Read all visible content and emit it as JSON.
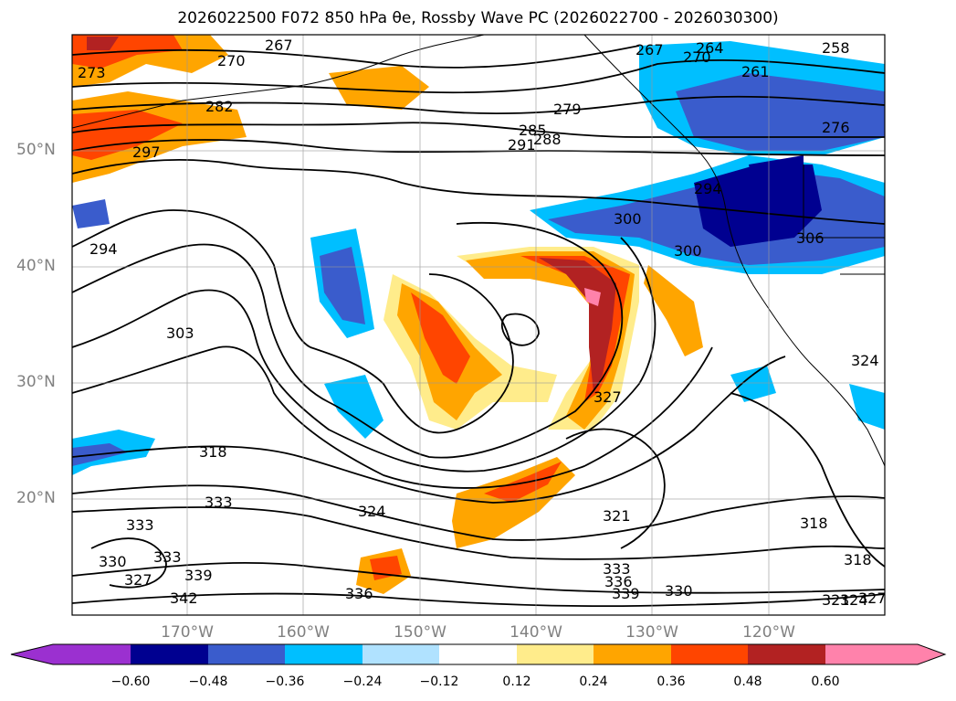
{
  "title": "2026022500 F072 850 hPa θe, Rossby Wave PC (2026022700 - 2026030300)",
  "lat_labels": [
    "50°N",
    "40°N",
    "30°N",
    "20°N"
  ],
  "lon_labels": [
    "170°W",
    "160°W",
    "150°W",
    "140°W",
    "130°W",
    "120°W"
  ],
  "contour_labels": [
    "267",
    "270",
    "273",
    "282",
    "297",
    "294",
    "303",
    "318",
    "333",
    "333",
    "330",
    "327",
    "333",
    "339",
    "342",
    "324",
    "336",
    "279",
    "285",
    "288",
    "291",
    "267",
    "264",
    "270",
    "258",
    "261",
    "276",
    "294",
    "300",
    "300",
    "306",
    "324",
    "321",
    "327",
    "318",
    "318",
    "333",
    "336",
    "339",
    "330",
    "321",
    "324",
    "327"
  ],
  "colorbar": {
    "ticks": [
      "−0.60",
      "−0.48",
      "−0.36",
      "−0.24",
      "−0.12",
      "0.12",
      "0.24",
      "0.36",
      "0.48",
      "0.60"
    ],
    "colors": [
      "#9b30d0",
      "#000090",
      "#3a5ccc",
      "#00bfff",
      "#b0e2ff",
      "#ffffff",
      "#ffec8b",
      "#ffa500",
      "#ff4500",
      "#b22222",
      "#ff82ab"
    ]
  }
}
